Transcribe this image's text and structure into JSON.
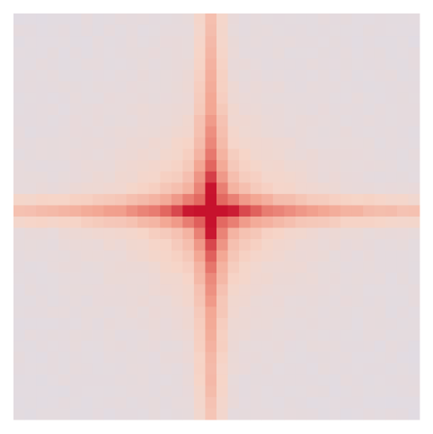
{
  "chart_data": {
    "type": "heatmap",
    "title": "",
    "xlabel": "",
    "ylabel": "",
    "rows": 36,
    "cols": 36,
    "peak_cell": [
      17,
      17
    ],
    "value_range": [
      0,
      1
    ],
    "grid": false,
    "legend": "none",
    "colormap": {
      "low": "#dcdde8",
      "mid1": "#f6d5c8",
      "mid2": "#f3a794",
      "mid3": "#e36a62",
      "high": "#c7122d"
    },
    "model": {
      "background": 0.05,
      "cross_amplitude": 0.42,
      "cross_decay": 0.085,
      "cross_falloff": 0.035,
      "peak_amplitude": 0.55,
      "peak_decay": 0.38
    }
  }
}
